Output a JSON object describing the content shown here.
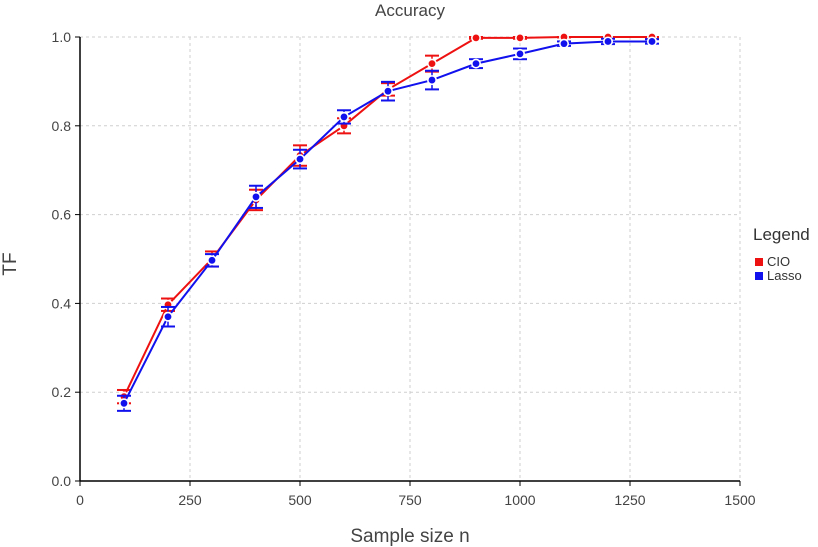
{
  "chart_data": {
    "type": "line",
    "title": "Accuracy",
    "xlabel": "Sample size n",
    "ylabel": "TF",
    "xlim": [
      0,
      1500
    ],
    "ylim": [
      0,
      1.0
    ],
    "x_ticks": [
      0,
      250,
      500,
      750,
      1000,
      1250,
      1500
    ],
    "y_ticks": [
      0.0,
      0.2,
      0.4,
      0.6,
      0.8,
      1.0
    ],
    "x_tick_labels": [
      "0",
      "250",
      "500",
      "750",
      "1000",
      "1250",
      "1500"
    ],
    "y_tick_labels": [
      "0.0",
      "0.2",
      "0.4",
      "0.6",
      "0.8",
      "1.0"
    ],
    "grid": true,
    "legend": {
      "title": "Legend",
      "position": "right"
    },
    "x": [
      100,
      200,
      300,
      400,
      500,
      600,
      700,
      800,
      900,
      1000,
      1100,
      1200,
      1300
    ],
    "series": [
      {
        "name": "CIO",
        "color": "#ee1111",
        "values": [
          0.19,
          0.397,
          0.5,
          0.633,
          0.733,
          0.8,
          0.882,
          0.94,
          0.998,
          0.998,
          1.0,
          1.0,
          1.0
        ],
        "err_low": [
          0.175,
          0.383,
          0.483,
          0.61,
          0.71,
          0.783,
          0.868,
          0.922,
          0.996,
          0.996,
          0.999,
          0.999,
          0.999
        ],
        "err_high": [
          0.205,
          0.411,
          0.517,
          0.656,
          0.756,
          0.817,
          0.896,
          0.958,
          1.0,
          1.0,
          1.0,
          1.0,
          1.0
        ]
      },
      {
        "name": "Lasso",
        "color": "#1111ee",
        "values": [
          0.175,
          0.37,
          0.497,
          0.64,
          0.725,
          0.82,
          0.878,
          0.903,
          0.94,
          0.962,
          0.985,
          0.99,
          0.99
        ],
        "err_low": [
          0.158,
          0.348,
          0.483,
          0.615,
          0.704,
          0.805,
          0.857,
          0.882,
          0.93,
          0.95,
          0.98,
          0.984,
          0.985
        ],
        "err_high": [
          0.192,
          0.392,
          0.511,
          0.665,
          0.746,
          0.835,
          0.899,
          0.924,
          0.95,
          0.974,
          0.99,
          0.996,
          0.995
        ]
      }
    ]
  }
}
